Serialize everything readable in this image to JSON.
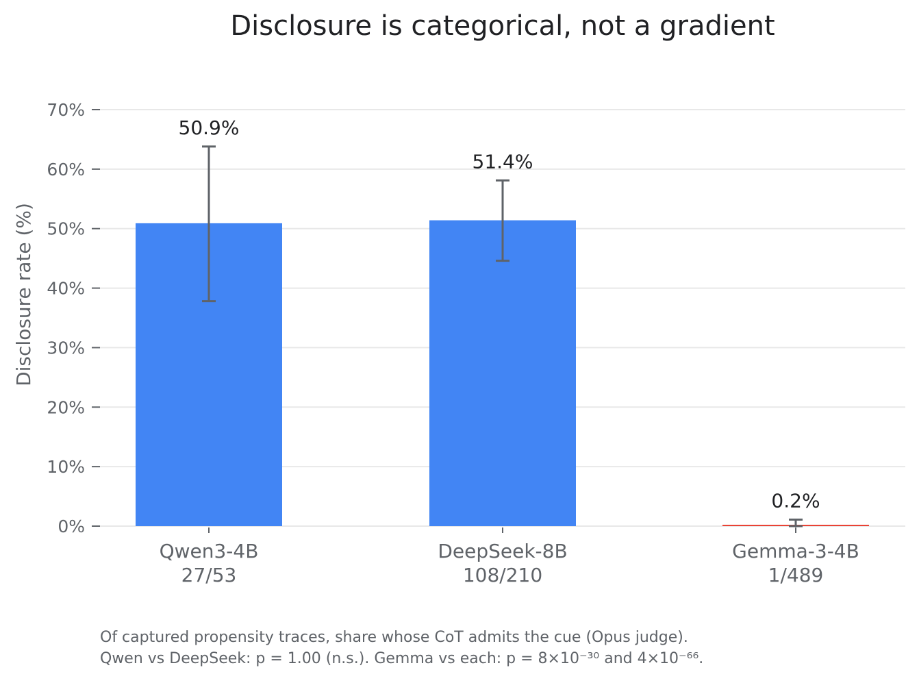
{
  "chart_data": {
    "type": "bar",
    "title": "Disclosure is categorical, not a gradient",
    "ylabel": "Disclosure rate (%)",
    "xlabel": "",
    "ylim": [
      0,
      70
    ],
    "yticks": [
      0,
      10,
      20,
      30,
      40,
      50,
      60,
      70
    ],
    "ytick_labels": [
      "0%",
      "10%",
      "20%",
      "30%",
      "40%",
      "50%",
      "60%",
      "70%"
    ],
    "grid": true,
    "categories": [
      "Qwen3-4B",
      "DeepSeek-8B",
      "Gemma-3-4B"
    ],
    "category_counts": [
      "27/53",
      "108/210",
      "1/489"
    ],
    "values": [
      50.9,
      51.4,
      0.2
    ],
    "value_labels": [
      "50.9%",
      "51.4%",
      "0.2%"
    ],
    "error_low": [
      37.8,
      44.6,
      0.0
    ],
    "error_high": [
      63.8,
      58.1,
      1.1
    ],
    "bar_colors": [
      "#4285f4",
      "#4285f4",
      "#ea4335"
    ],
    "footnote": [
      "Of captured propensity traces, share whose CoT admits the cue (Opus judge).",
      "Qwen vs DeepSeek: p = 1.00 (n.s.).  Gemma vs each: p = 8×10⁻³⁰ and 4×10⁻⁶⁶."
    ]
  }
}
